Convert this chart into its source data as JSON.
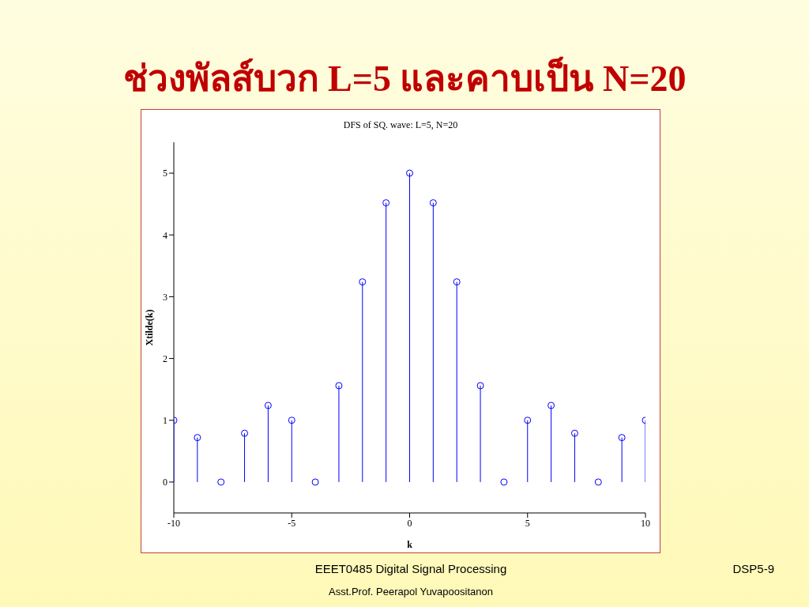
{
  "chart_data": {
    "type": "lollipop",
    "title": "ช่วงพัลส์บวก L=5 และคาบเป็น N=20",
    "subtitle": "DFS of SQ. wave: L=5, N=20",
    "xlabel": "k",
    "ylabel": "Xtilde(k)",
    "x": [
      -10,
      -9,
      -8,
      -7,
      -6,
      -5,
      -4,
      -3,
      -2,
      -1,
      0,
      1,
      2,
      3,
      4,
      5,
      6,
      7,
      8,
      9,
      10
    ],
    "values": [
      1,
      0.72,
      0,
      0.79,
      1.24,
      1,
      0,
      1.56,
      3.24,
      4.52,
      5,
      4.52,
      3.24,
      1.56,
      0,
      1,
      1.24,
      0.79,
      0,
      0.72,
      1
    ],
    "color": "#0000ff",
    "marker": "circle",
    "xlim": [
      -10,
      10
    ],
    "xticks": [
      -10,
      -5,
      0,
      5,
      10
    ],
    "ylim": [
      -0.5,
      5.5
    ],
    "yticks": [
      0,
      1,
      2,
      3,
      4,
      5
    ],
    "grid": false,
    "annotations": [
      "EEET0485 Digital Signal Processing",
      "DSP5-9",
      "Asst.Prof. Peerapol Yuvapoositanon"
    ]
  }
}
